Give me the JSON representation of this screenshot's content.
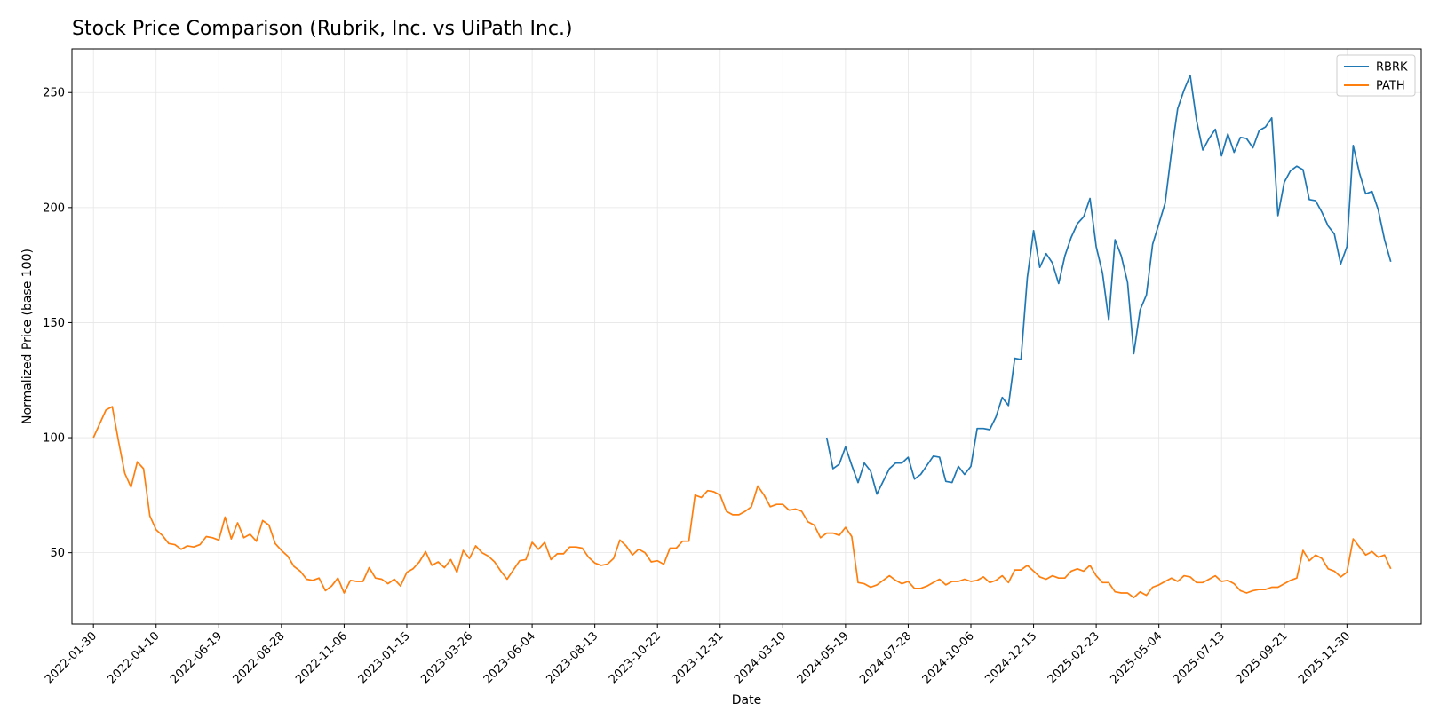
{
  "chart_data": {
    "type": "line",
    "title": "Stock Price Comparison (Rubrik, Inc. vs UiPath Inc.)",
    "xlabel": "Date",
    "ylabel": "Normalized Price (base 100)",
    "x_ticks": [
      "2022-01-30",
      "2022-04-10",
      "2022-06-19",
      "2022-08-28",
      "2022-11-06",
      "2023-01-15",
      "2023-03-26",
      "2023-06-04",
      "2023-08-13",
      "2023-10-22",
      "2023-12-31",
      "2024-03-10",
      "2024-05-19",
      "2024-07-28",
      "2024-10-06",
      "2024-12-15",
      "2025-02-23",
      "2025-05-04",
      "2025-07-13",
      "2025-09-21",
      "2025-11-30"
    ],
    "y_ticks": [
      50,
      100,
      150,
      200,
      250
    ],
    "xlim": [
      "2022-01-06",
      "2026-02-21"
    ],
    "ylim": [
      19,
      269
    ],
    "grid": true,
    "legend_position": "top-right",
    "series": [
      {
        "name": "RBRK",
        "color": "#1f77b4",
        "start": "2024-04-28",
        "step_days": 7,
        "values": [
          100,
          86.5,
          88.5,
          96,
          88,
          80.5,
          89,
          85.5,
          75.5,
          81,
          86.5,
          89,
          89,
          91.5,
          82,
          84,
          88,
          92,
          91.5,
          81,
          80.5,
          87.5,
          84,
          87.5,
          104,
          104,
          103.5,
          109,
          117.5,
          114,
          134.5,
          134,
          169.5,
          190,
          174,
          180,
          176,
          167,
          179,
          187,
          193,
          196,
          204,
          183,
          171.5,
          151,
          186,
          179,
          167.5,
          136.5,
          155.5,
          162,
          184,
          193,
          202,
          224,
          243,
          251,
          257.5,
          238,
          225,
          230,
          234,
          222.5,
          232,
          224,
          230.5,
          230,
          226,
          233.5,
          235,
          239,
          196.5,
          211,
          216,
          218,
          216.5,
          203.5,
          203,
          198,
          192,
          188.5,
          175.5,
          183,
          227,
          215,
          206,
          207,
          199,
          186,
          176.5
        ]
      },
      {
        "name": "PATH",
        "color": "#ff7f0e",
        "start": "2022-01-30",
        "step_days": 7,
        "values": [
          100,
          106,
          112,
          113.5,
          98.5,
          84.5,
          78.5,
          89.5,
          86.5,
          66,
          60,
          57.5,
          54,
          53.5,
          51.5,
          53,
          52.5,
          53.5,
          57,
          56.5,
          55.5,
          65.5,
          56,
          63,
          56.5,
          58,
          55,
          64,
          62,
          54,
          51,
          48.5,
          44,
          42,
          38.5,
          38,
          39,
          33.5,
          35.5,
          39,
          32.5,
          38,
          37.5,
          37.5,
          43.5,
          39,
          38.5,
          36.5,
          38.5,
          35.5,
          41.5,
          43,
          46,
          50.5,
          44.5,
          46,
          43.5,
          47,
          41.5,
          51,
          47.5,
          53,
          50,
          48.5,
          46,
          42,
          38.5,
          42.5,
          46.5,
          47,
          54.5,
          51.5,
          54.5,
          47,
          49.5,
          49.5,
          52.5,
          52.5,
          52,
          48,
          45.5,
          44.5,
          45,
          47.5,
          55.5,
          53,
          49,
          51.5,
          50,
          46,
          46.5,
          45,
          52,
          52,
          55,
          55,
          75,
          74,
          77,
          76.5,
          75,
          68,
          66.5,
          66.5,
          68,
          70,
          79,
          75,
          70,
          71,
          71,
          68.5,
          69,
          68,
          63.5,
          62,
          56.5,
          58.5,
          58.5,
          57.5,
          61,
          57,
          37,
          36.5,
          35,
          36,
          38,
          40,
          38,
          36.5,
          37.5,
          34.5,
          34.5,
          35.5,
          37,
          38.5,
          36,
          37.5,
          37.5,
          38.5,
          37.5,
          38,
          39.5,
          37,
          38,
          40,
          37,
          42.5,
          42.5,
          44.5,
          42,
          39.5,
          38.5,
          40,
          39,
          39,
          42,
          43,
          42,
          44.5,
          40,
          37,
          37,
          33,
          32.5,
          32.5,
          30.5,
          33,
          31.5,
          35,
          36,
          37.5,
          39,
          37.5,
          40,
          39.5,
          37,
          37,
          38.5,
          40,
          37.5,
          38,
          36.5,
          33.5,
          32.5,
          33.5,
          34,
          34,
          35,
          35,
          36.5,
          38,
          39,
          51,
          46.5,
          49,
          47.5,
          43,
          42,
          39.5,
          41.5,
          56,
          52.5,
          49,
          50.5,
          48,
          49,
          43
        ]
      }
    ]
  }
}
